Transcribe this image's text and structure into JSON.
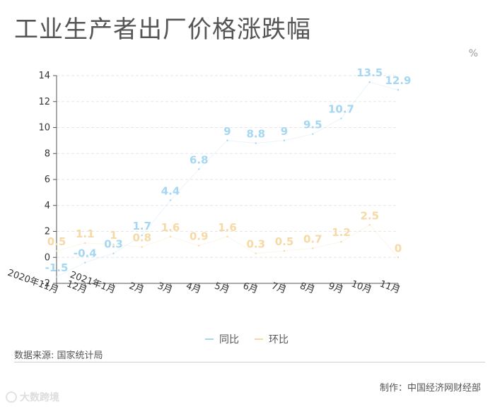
{
  "header": {
    "title": "工业生产者出厂价格涨跌幅",
    "unit": "%"
  },
  "legend": {
    "items": [
      {
        "label": "同比",
        "color": "#a6d7f2"
      },
      {
        "label": "环比",
        "color": "#f6d9a5"
      }
    ]
  },
  "footer": {
    "source": "数据来源: 国家统计局",
    "credit": "制作：中国经济网财经部",
    "watermark": "大数跨境"
  },
  "chart_data": {
    "type": "line",
    "categories": [
      "2020年11月",
      "12月",
      "2021年1月",
      "2月",
      "3月",
      "4月",
      "5月",
      "6月",
      "7月",
      "8月",
      "9月",
      "10月",
      "11月"
    ],
    "series": [
      {
        "name": "同比",
        "color": "#a6d7f2",
        "values": [
          -1.5,
          -0.4,
          0.3,
          1.7,
          4.4,
          6.8,
          9,
          8.8,
          9,
          9.5,
          10.7,
          13.5,
          12.9
        ]
      },
      {
        "name": "环比",
        "color": "#f6d9a5",
        "values": [
          0.5,
          1.1,
          1,
          0.8,
          1.6,
          0.9,
          1.6,
          0.3,
          0.5,
          0.7,
          1.2,
          2.5,
          0
        ]
      }
    ],
    "ylim": [
      -2,
      14
    ],
    "yticks": [
      -2,
      0,
      2,
      4,
      6,
      8,
      10,
      12,
      14
    ],
    "grid": true,
    "legend_position": "bottom"
  }
}
